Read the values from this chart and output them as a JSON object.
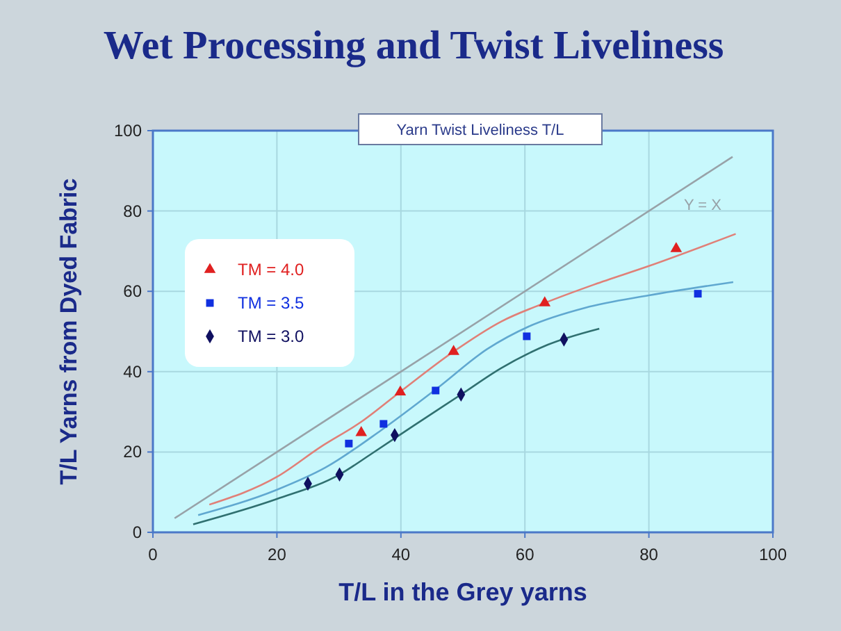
{
  "chart_data": {
    "type": "scatter",
    "title": "Wet Processing and Twist Liveliness",
    "subtitle": "Yarn Twist Liveliness T/L",
    "xlabel": "T/L in the Grey yarns",
    "ylabel": "T/L Yarns from Dyed Fabric",
    "xlim": [
      0,
      100
    ],
    "ylim": [
      0,
      100
    ],
    "xticks": [
      0,
      20,
      40,
      60,
      80,
      100
    ],
    "yticks": [
      0,
      20,
      40,
      60,
      80,
      100
    ],
    "grid": true,
    "legend": "top left",
    "series": [
      {
        "type": "line",
        "name": "Y = X",
        "color": "#98a2a8",
        "marker": "none",
        "x": [
          3.5,
          93.5
        ],
        "values": [
          3.5,
          93.5
        ]
      },
      {
        "type": "line",
        "color": "#e08078",
        "marker": "none",
        "x": [
          9.1,
          20,
          27.1,
          33.6,
          39.9,
          48.5,
          56.2,
          63.2,
          71.2,
          80,
          94
        ],
        "values": [
          6.9,
          13.8,
          21.3,
          27.5,
          35,
          45,
          52.5,
          57.1,
          61.7,
          66.3,
          74.3
        ]
      },
      {
        "type": "line",
        "color": "#60a8d0",
        "marker": "none",
        "x": [
          7.3,
          20,
          27.8,
          36.8,
          45.8,
          53.9,
          60.7,
          69.7,
          80,
          93.6
        ],
        "values": [
          4.3,
          10.6,
          16.1,
          25.4,
          35.8,
          45.6,
          51.3,
          55.9,
          59,
          62.3
        ]
      },
      {
        "type": "line",
        "color": "#307070",
        "marker": "none",
        "x": [
          6.5,
          20,
          30.1,
          35.3,
          42,
          49.7,
          56.2,
          63.7,
          72
        ],
        "values": [
          2,
          8.3,
          14.4,
          19.6,
          26.5,
          34.3,
          40.9,
          46.7,
          50.7
        ]
      },
      {
        "name": "TM = 4.0",
        "color": "#e02020",
        "marker": "triangle",
        "x": [
          33.6,
          39.9,
          48.5,
          63.2,
          84.4
        ],
        "values": [
          24.8,
          34.9,
          45,
          57.1,
          70.6
        ]
      },
      {
        "name": "TM = 3.5",
        "color": "#1030e0",
        "marker": "square",
        "x": [
          31.6,
          37.2,
          45.6,
          60.3,
          87.9
        ],
        "values": [
          22.1,
          27,
          35.3,
          48.8,
          59.4
        ]
      },
      {
        "name": "TM = 3.0",
        "color": "#101060",
        "marker": "diamond",
        "x": [
          25,
          30.1,
          39,
          49.7,
          66.3
        ],
        "values": [
          12.1,
          14.4,
          24.2,
          34.3,
          48
        ]
      }
    ]
  }
}
